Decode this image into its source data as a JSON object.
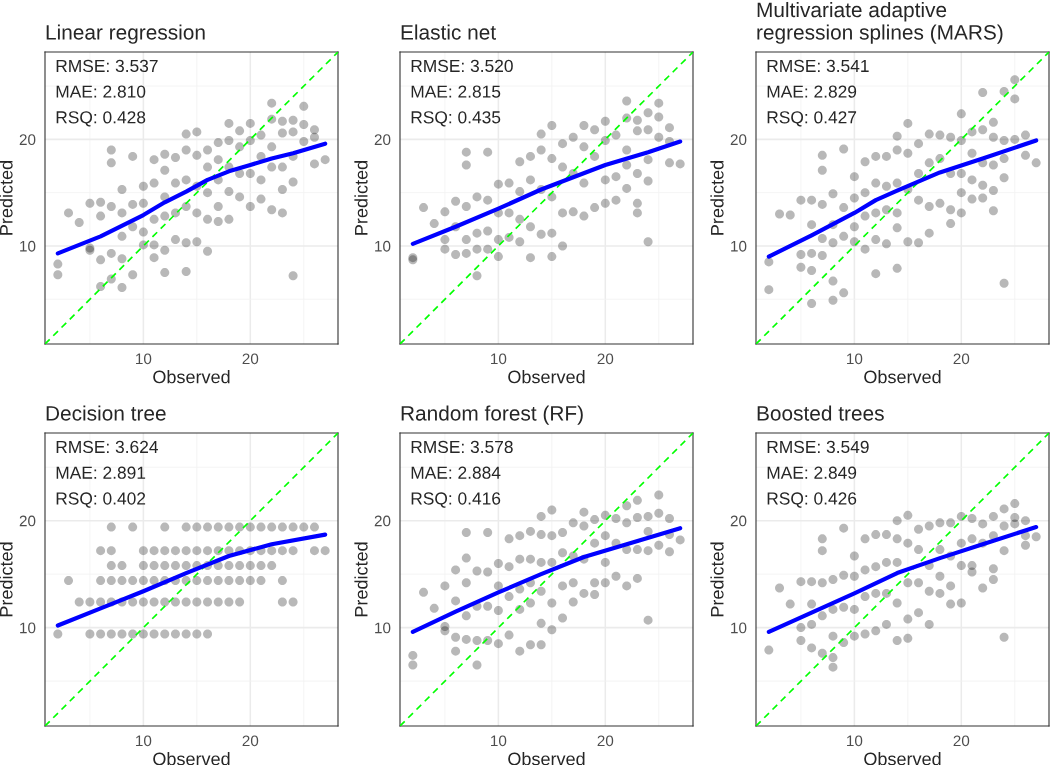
{
  "chart_data": [
    {
      "type": "scatter",
      "title": "Linear regression",
      "xlabel": "Observed",
      "ylabel": "Predicted",
      "xlim": [
        0.8,
        28.2
      ],
      "ylim": [
        0.8,
        28.2
      ],
      "xticks": [
        {
          "value": 5,
          "label": null
        },
        10,
        {
          "value": 15,
          "label": null
        },
        20,
        {
          "value": 25,
          "label": null
        }
      ],
      "yticks": [
        {
          "value": 5,
          "label": null
        },
        10,
        {
          "value": 15,
          "label": null
        },
        20,
        {
          "value": 25,
          "label": null
        }
      ],
      "grid": true,
      "annotations": [
        "RMSE: 3.537",
        "MAE: 2.810",
        "RSQ: 0.428"
      ],
      "series": [
        {
          "type": "scatter",
          "color": "#000000",
          "marker": "circle",
          "x": [
            2,
            2,
            3,
            4,
            5,
            5,
            5,
            6,
            6,
            6,
            6,
            7,
            7,
            7,
            7,
            7,
            8,
            8,
            8,
            8,
            8,
            9,
            9,
            9,
            9,
            10,
            10,
            10,
            10,
            11,
            11,
            11,
            11,
            11,
            12,
            12,
            12,
            12,
            12,
            12,
            13,
            13,
            13,
            13,
            14,
            14,
            14,
            14,
            14,
            14,
            15,
            15,
            15,
            15,
            15,
            16,
            16,
            16,
            16,
            16,
            17,
            17,
            17,
            17,
            17,
            18,
            18,
            18,
            18,
            18,
            19,
            19,
            19,
            19,
            20,
            20,
            20,
            20,
            21,
            21,
            21,
            21,
            22,
            22,
            22,
            22,
            22,
            23,
            23,
            23,
            23,
            23,
            24,
            24,
            24,
            24,
            24,
            25,
            25,
            25,
            26,
            26,
            26,
            27
          ],
          "values": [
            8.3,
            7.3,
            13.1,
            12.2,
            14.0,
            9.6,
            9.8,
            14.1,
            12.8,
            8.7,
            6.2,
            19.0,
            17.8,
            13.7,
            9.3,
            6.9,
            15.3,
            13.1,
            10.9,
            8.8,
            6.1,
            18.4,
            13.9,
            11.8,
            7.3,
            15.6,
            14.0,
            11.3,
            10.1,
            18.1,
            15.9,
            12.5,
            10.1,
            8.9,
            18.6,
            17.1,
            14.6,
            12.8,
            9.6,
            7.5,
            18.3,
            15.9,
            13.1,
            10.6,
            20.5,
            19.0,
            16.2,
            13.7,
            10.3,
            7.6,
            20.7,
            18.5,
            15.6,
            13.1,
            10.4,
            19.0,
            17.4,
            15.0,
            12.5,
            9.5,
            19.7,
            18.1,
            16.2,
            13.7,
            12.3,
            21.5,
            19.9,
            17.4,
            15.1,
            12.5,
            20.8,
            19.3,
            16.8,
            14.6,
            21.5,
            19.9,
            16.8,
            13.7,
            20.4,
            18.4,
            16.2,
            14.4,
            23.4,
            21.9,
            19.3,
            17.4,
            13.4,
            21.7,
            20.6,
            17.4,
            15.3,
            13.1,
            21.8,
            20.7,
            18.4,
            16.0,
            7.2,
            23.1,
            21.4,
            19.8,
            20.9,
            20.2,
            17.7,
            18.1
          ]
        },
        {
          "type": "line",
          "color": "#00ff00",
          "line_style": "dashed",
          "x": [
            0.8,
            28.2
          ],
          "values": [
            0.8,
            28.2
          ]
        },
        {
          "type": "line",
          "color": "#0000ff",
          "line_style": "solid",
          "x": [
            2,
            6,
            10,
            12,
            14,
            16,
            18,
            20,
            22,
            24,
            27
          ],
          "values": [
            9.3,
            10.9,
            12.9,
            14.1,
            15.1,
            16.2,
            17.0,
            17.6,
            18.2,
            18.7,
            19.6
          ]
        }
      ]
    },
    {
      "type": "scatter",
      "title": "Elastic net",
      "xlabel": "Observed",
      "ylabel": "Predicted",
      "xlim": [
        0.8,
        28.2
      ],
      "ylim": [
        0.8,
        28.2
      ],
      "xticks": [
        {
          "value": 5,
          "label": null
        },
        10,
        {
          "value": 15,
          "label": null
        },
        20,
        {
          "value": 25,
          "label": null
        }
      ],
      "yticks": [
        {
          "value": 5,
          "label": null
        },
        10,
        {
          "value": 15,
          "label": null
        },
        20,
        {
          "value": 25,
          "label": null
        }
      ],
      "grid": true,
      "annotations": [
        "RMSE: 3.520",
        "MAE: 2.815",
        "RSQ: 0.435"
      ],
      "series": [
        {
          "type": "scatter",
          "color": "#000000",
          "marker": "circle",
          "x": [
            2,
            2,
            3,
            4,
            5,
            5,
            5,
            6,
            6,
            6,
            7,
            7,
            7,
            7,
            7,
            8,
            8,
            8,
            8,
            9,
            9,
            9,
            9,
            10,
            10,
            10,
            10,
            11,
            11,
            11,
            12,
            12,
            12,
            12,
            13,
            13,
            13,
            13,
            14,
            14,
            14,
            14,
            15,
            15,
            15,
            15,
            15,
            16,
            16,
            16,
            16,
            17,
            17,
            17,
            18,
            18,
            18,
            18,
            19,
            19,
            19,
            20,
            20,
            20,
            20,
            21,
            21,
            21,
            22,
            22,
            22,
            22,
            22,
            23,
            23,
            23,
            23,
            23,
            24,
            24,
            24,
            24,
            24,
            25,
            25,
            25,
            26,
            26,
            26,
            27
          ],
          "values": [
            8.9,
            8.7,
            13.6,
            12.1,
            13.2,
            10.6,
            9.7,
            14.2,
            11.8,
            9.2,
            18.8,
            17.6,
            13.7,
            10.6,
            9.3,
            14.6,
            11.2,
            9.7,
            7.2,
            18.8,
            14.3,
            11.4,
            9.7,
            15.8,
            13.1,
            10.6,
            9.0,
            15.9,
            13.1,
            10.8,
            17.9,
            15.1,
            12.5,
            10.4,
            18.4,
            16.2,
            11.8,
            8.9,
            20.5,
            19.0,
            15.3,
            11.1,
            21.3,
            18.2,
            14.6,
            11.2,
            9.0,
            19.6,
            17.4,
            13.1,
            10.0,
            20.2,
            16.8,
            13.2,
            21.3,
            19.3,
            15.9,
            12.8,
            20.9,
            18.4,
            13.6,
            21.7,
            19.9,
            16.2,
            14.0,
            20.4,
            16.5,
            14.3,
            23.6,
            22.0,
            19.0,
            17.6,
            15.4,
            21.8,
            20.8,
            16.8,
            14.0,
            13.1,
            22.5,
            20.9,
            18.1,
            16.1,
            10.4,
            23.4,
            22.1,
            20.2,
            21.1,
            19.8,
            17.8,
            17.7
          ]
        },
        {
          "type": "line",
          "color": "#00ff00",
          "line_style": "dashed",
          "x": [
            0.8,
            28.2
          ],
          "values": [
            0.8,
            28.2
          ]
        },
        {
          "type": "line",
          "color": "#0000ff",
          "line_style": "solid",
          "x": [
            2,
            6,
            10,
            14,
            20,
            24,
            27
          ],
          "values": [
            10.2,
            11.8,
            13.5,
            15.3,
            17.6,
            18.8,
            19.8
          ]
        }
      ]
    },
    {
      "type": "scatter",
      "title": "Multivariate adaptive\nregression splines (MARS)",
      "xlabel": "Observed",
      "ylabel": "Predicted",
      "xlim": [
        0.8,
        28.2
      ],
      "ylim": [
        0.8,
        28.2
      ],
      "xticks": [
        {
          "value": 5,
          "label": null
        },
        10,
        {
          "value": 15,
          "label": null
        },
        20,
        {
          "value": 25,
          "label": null
        }
      ],
      "yticks": [
        {
          "value": 5,
          "label": null
        },
        10,
        {
          "value": 15,
          "label": null
        },
        20,
        {
          "value": 25,
          "label": null
        }
      ],
      "grid": true,
      "annotations": [
        "RMSE: 3.541",
        "MAE: 2.829",
        "RSQ: 0.427"
      ],
      "series": [
        {
          "type": "scatter",
          "color": "#000000",
          "marker": "circle",
          "x": [
            2,
            2,
            3,
            4,
            5,
            5,
            5,
            6,
            6,
            6,
            6,
            6,
            7,
            7,
            7,
            7,
            7,
            8,
            8,
            8,
            8,
            8,
            9,
            9,
            9,
            9,
            10,
            10,
            10,
            10,
            11,
            11,
            11,
            11,
            12,
            12,
            12,
            12,
            12,
            13,
            13,
            13,
            13,
            14,
            14,
            14,
            14,
            14,
            14,
            15,
            15,
            15,
            15,
            16,
            16,
            16,
            16,
            17,
            17,
            17,
            17,
            18,
            18,
            18,
            19,
            19,
            19,
            19,
            20,
            20,
            20,
            20,
            20,
            21,
            21,
            21,
            21,
            22,
            22,
            22,
            22,
            22,
            23,
            23,
            23,
            23,
            23,
            24,
            24,
            24,
            24,
            24,
            25,
            25,
            25,
            26,
            26,
            27
          ],
          "values": [
            8.5,
            5.9,
            13.0,
            12.9,
            14.3,
            9.2,
            8.0,
            14.3,
            12.0,
            9.3,
            7.7,
            4.6,
            18.5,
            17.1,
            13.9,
            10.7,
            9.1,
            14.9,
            12.0,
            10.3,
            6.7,
            4.9,
            19.1,
            13.6,
            10.9,
            5.6,
            16.5,
            14.5,
            11.8,
            10.4,
            17.9,
            15.0,
            12.8,
            9.7,
            18.4,
            15.9,
            13.1,
            10.6,
            7.4,
            18.4,
            15.6,
            13.4,
            10.2,
            20.3,
            19.0,
            15.9,
            13.1,
            11.7,
            7.9,
            21.5,
            18.7,
            15.3,
            10.4,
            19.6,
            16.8,
            14.3,
            10.3,
            20.5,
            17.8,
            13.7,
            11.2,
            20.4,
            18.2,
            14.0,
            20.2,
            16.8,
            13.4,
            12.1,
            22.4,
            19.9,
            16.8,
            15.0,
            13.1,
            20.7,
            18.7,
            16.2,
            14.4,
            24.4,
            20.9,
            17.8,
            15.7,
            14.5,
            21.6,
            20.2,
            17.6,
            15.2,
            13.3,
            24.5,
            19.9,
            18.2,
            16.4,
            6.5,
            25.6,
            23.8,
            20.0,
            20.4,
            18.5,
            17.8
          ]
        },
        {
          "type": "line",
          "color": "#00ff00",
          "line_style": "dashed",
          "x": [
            0.8,
            28.2
          ],
          "values": [
            0.8,
            28.2
          ]
        },
        {
          "type": "line",
          "color": "#0000ff",
          "line_style": "solid",
          "x": [
            2,
            6,
            10,
            12,
            14,
            18,
            22,
            27
          ],
          "values": [
            9.0,
            11.0,
            13.1,
            14.3,
            15.2,
            16.9,
            18.2,
            19.9
          ]
        }
      ]
    },
    {
      "type": "scatter",
      "title": "Decision tree",
      "xlabel": "Observed",
      "ylabel": "Predicted",
      "xlim": [
        0.8,
        28.2
      ],
      "ylim": [
        0.8,
        28.2
      ],
      "xticks": [
        {
          "value": 5,
          "label": null
        },
        10,
        {
          "value": 15,
          "label": null
        },
        20,
        {
          "value": 25,
          "label": null
        }
      ],
      "yticks": [
        {
          "value": 5,
          "label": null
        },
        10,
        {
          "value": 15,
          "label": null
        },
        20,
        {
          "value": 25,
          "label": null
        }
      ],
      "grid": true,
      "annotations": [
        "RMSE: 3.624",
        "MAE: 2.891",
        "RSQ: 0.402"
      ],
      "series": [
        {
          "type": "scatter",
          "color": "#000000",
          "marker": "circle",
          "x": [
            7,
            9,
            12,
            14,
            15,
            16,
            17,
            18,
            19,
            20,
            21,
            22,
            23,
            24,
            25,
            26,
            6,
            7,
            10,
            11,
            12,
            13,
            14,
            15,
            16,
            17,
            18,
            19,
            20,
            21,
            22,
            23,
            24,
            26,
            27,
            7,
            8,
            10,
            11,
            12,
            13,
            14,
            15,
            16,
            17,
            18,
            19,
            20,
            21,
            22,
            3,
            6,
            7,
            8,
            9,
            10,
            11,
            12,
            13,
            14,
            15,
            16,
            17,
            18,
            19,
            20,
            21,
            23,
            4,
            5,
            6,
            7,
            8,
            9,
            10,
            11,
            12,
            13,
            14,
            15,
            16,
            17,
            18,
            19,
            23,
            24,
            2,
            5,
            6,
            7,
            8,
            9,
            10,
            11,
            12,
            13,
            14,
            15,
            16
          ],
          "values": [
            19.4,
            19.4,
            19.4,
            19.4,
            19.4,
            19.4,
            19.4,
            19.4,
            19.4,
            19.4,
            19.4,
            19.4,
            19.4,
            19.4,
            19.4,
            19.4,
            17.2,
            17.2,
            17.2,
            17.2,
            17.2,
            17.2,
            17.2,
            17.2,
            17.2,
            17.2,
            17.2,
            17.2,
            17.2,
            17.2,
            17.2,
            17.2,
            17.2,
            17.2,
            17.2,
            15.8,
            15.8,
            15.8,
            15.8,
            15.8,
            15.8,
            15.8,
            15.8,
            15.8,
            15.8,
            15.8,
            15.8,
            15.8,
            15.8,
            15.8,
            14.4,
            14.4,
            14.4,
            14.4,
            14.4,
            14.4,
            14.4,
            14.4,
            14.4,
            14.4,
            14.4,
            14.4,
            14.4,
            14.4,
            14.4,
            14.4,
            14.4,
            14.4,
            12.4,
            12.4,
            12.4,
            12.4,
            12.4,
            12.4,
            12.4,
            12.4,
            12.4,
            12.4,
            12.4,
            12.4,
            12.4,
            12.4,
            12.4,
            12.4,
            12.4,
            12.4,
            9.4,
            9.4,
            9.4,
            9.4,
            9.4,
            9.4,
            9.4,
            9.4,
            9.4,
            9.4,
            9.4,
            9.4,
            9.4
          ]
        },
        {
          "type": "line",
          "color": "#00ff00",
          "line_style": "dashed",
          "x": [
            0.8,
            28.2
          ],
          "values": [
            0.8,
            28.2
          ]
        },
        {
          "type": "line",
          "color": "#0000ff",
          "line_style": "solid",
          "x": [
            2,
            6,
            10,
            14,
            18,
            22,
            27
          ],
          "values": [
            10.2,
            11.8,
            13.4,
            15.1,
            16.7,
            17.8,
            18.7
          ]
        }
      ]
    },
    {
      "type": "scatter",
      "title": "Random forest (RF)",
      "xlabel": "Observed",
      "ylabel": "Predicted",
      "xlim": [
        0.8,
        28.2
      ],
      "ylim": [
        0.8,
        28.2
      ],
      "xticks": [
        {
          "value": 5,
          "label": null
        },
        10,
        {
          "value": 15,
          "label": null
        },
        20,
        {
          "value": 25,
          "label": null
        }
      ],
      "yticks": [
        {
          "value": 5,
          "label": null
        },
        10,
        {
          "value": 15,
          "label": null
        },
        20,
        {
          "value": 25,
          "label": null
        }
      ],
      "grid": true,
      "annotations": [
        "RMSE: 3.578",
        "MAE: 2.884",
        "RSQ: 0.416"
      ],
      "series": [
        {
          "type": "scatter",
          "color": "#000000",
          "marker": "circle",
          "x": [
            2,
            2,
            3,
            4,
            5,
            5,
            5,
            6,
            6,
            6,
            6,
            7,
            7,
            7,
            7,
            7,
            8,
            8,
            8,
            8,
            9,
            9,
            9,
            9,
            10,
            10,
            10,
            10,
            11,
            11,
            11,
            11,
            12,
            12,
            12,
            12,
            12,
            13,
            13,
            13,
            13,
            13,
            14,
            14,
            14,
            14,
            14,
            14,
            15,
            15,
            15,
            15,
            15,
            16,
            16,
            16,
            16,
            17,
            17,
            17,
            17,
            18,
            18,
            18,
            18,
            19,
            19,
            19,
            19,
            20,
            20,
            20,
            20,
            21,
            21,
            21,
            22,
            22,
            22,
            22,
            23,
            23,
            23,
            23,
            24,
            24,
            24,
            24,
            25,
            25,
            25,
            26,
            26,
            26,
            27
          ],
          "values": [
            7.4,
            6.5,
            13.3,
            11.8,
            13.9,
            10.1,
            9.7,
            15.4,
            12.5,
            9.1,
            7.8,
            18.9,
            16.5,
            14.2,
            11.1,
            8.9,
            15.3,
            12.0,
            8.8,
            6.5,
            18.9,
            15.2,
            12.0,
            8.8,
            16.0,
            13.9,
            11.6,
            8.5,
            18.3,
            15.7,
            12.9,
            9.3,
            18.6,
            16.4,
            13.6,
            11.7,
            7.8,
            19.0,
            16.4,
            14.2,
            12.3,
            8.4,
            20.4,
            18.7,
            16.1,
            13.4,
            10.4,
            8.4,
            21.0,
            18.6,
            16.1,
            12.3,
            9.8,
            18.9,
            17.0,
            13.9,
            10.9,
            19.8,
            16.7,
            14.2,
            12.4,
            20.8,
            19.5,
            16.4,
            13.2,
            20.1,
            17.9,
            14.2,
            13.1,
            20.5,
            18.6,
            16.1,
            14.2,
            20.2,
            17.9,
            14.8,
            21.4,
            19.8,
            17.3,
            13.9,
            21.9,
            20.3,
            17.3,
            14.6,
            20.4,
            19.0,
            17.2,
            10.7,
            22.4,
            20.7,
            17.7,
            20.2,
            18.7,
            17.1,
            18.2
          ]
        },
        {
          "type": "line",
          "color": "#00ff00",
          "line_style": "dashed",
          "x": [
            0.8,
            28.2
          ],
          "values": [
            0.8,
            28.2
          ]
        },
        {
          "type": "line",
          "color": "#0000ff",
          "line_style": "solid",
          "x": [
            2,
            6,
            10,
            14,
            18,
            22,
            27
          ],
          "values": [
            9.6,
            11.5,
            13.3,
            15.0,
            16.6,
            17.8,
            19.3
          ]
        }
      ]
    },
    {
      "type": "scatter",
      "title": "Boosted trees",
      "xlabel": "Observed",
      "ylabel": "Predicted",
      "xlim": [
        0.8,
        28.2
      ],
      "ylim": [
        0.8,
        28.2
      ],
      "xticks": [
        {
          "value": 5,
          "label": null
        },
        10,
        {
          "value": 15,
          "label": null
        },
        20,
        {
          "value": 25,
          "label": null
        }
      ],
      "yticks": [
        {
          "value": 5,
          "label": null
        },
        10,
        {
          "value": 15,
          "label": null
        },
        20,
        {
          "value": 25,
          "label": null
        }
      ],
      "grid": true,
      "annotations": [
        "RMSE: 3.549",
        "MAE: 2.849",
        "RSQ: 0.426"
      ],
      "series": [
        {
          "type": "scatter",
          "color": "#000000",
          "marker": "circle",
          "x": [
            2,
            3,
            4,
            5,
            5,
            5,
            6,
            6,
            6,
            6,
            7,
            7,
            7,
            7,
            7,
            8,
            8,
            8,
            8,
            8,
            9,
            9,
            9,
            9,
            10,
            10,
            10,
            10,
            11,
            11,
            11,
            11,
            12,
            12,
            12,
            12,
            13,
            13,
            13,
            13,
            14,
            14,
            14,
            14,
            14,
            15,
            15,
            15,
            15,
            15,
            16,
            16,
            16,
            16,
            17,
            17,
            17,
            17,
            18,
            18,
            18,
            18,
            19,
            19,
            19,
            19,
            20,
            20,
            20,
            20,
            21,
            21,
            21,
            21,
            22,
            22,
            22,
            23,
            23,
            23,
            23,
            24,
            24,
            24,
            24,
            25,
            25,
            25,
            26,
            26,
            26,
            27
          ],
          "values": [
            7.9,
            13.7,
            12.2,
            14.3,
            10.0,
            8.8,
            14.3,
            12.2,
            10.3,
            8.1,
            18.3,
            17.2,
            14.2,
            11.1,
            7.6,
            14.5,
            11.7,
            9.2,
            7.2,
            6.3,
            19.3,
            14.9,
            11.9,
            8.6,
            16.7,
            14.8,
            11.7,
            9.2,
            18.3,
            15.4,
            12.9,
            9.4,
            18.7,
            15.7,
            13.2,
            9.7,
            18.7,
            16.1,
            13.2,
            10.3,
            20.0,
            18.3,
            16.1,
            12.3,
            8.8,
            20.5,
            17.9,
            14.2,
            10.8,
            9.0,
            19.2,
            17.3,
            14.2,
            11.4,
            19.5,
            15.8,
            13.4,
            10.3,
            19.8,
            17.3,
            14.8,
            13.2,
            19.8,
            16.7,
            13.9,
            12.2,
            20.4,
            17.9,
            15.8,
            12.3,
            20.2,
            18.3,
            15.8,
            15.2,
            19.7,
            17.9,
            13.7,
            20.4,
            18.6,
            15.5,
            14.5,
            21.1,
            19.5,
            17.2,
            9.1,
            21.6,
            20.3,
            19.7,
            20.0,
            18.6,
            17.7,
            18.5
          ]
        },
        {
          "type": "line",
          "color": "#00ff00",
          "line_style": "dashed",
          "x": [
            0.8,
            28.2
          ],
          "values": [
            0.8,
            28.2
          ]
        },
        {
          "type": "line",
          "color": "#0000ff",
          "line_style": "solid",
          "x": [
            2,
            6,
            10,
            14,
            18,
            22,
            27
          ],
          "values": [
            9.6,
            11.4,
            13.2,
            15.1,
            16.5,
            17.8,
            19.4
          ]
        }
      ]
    }
  ]
}
